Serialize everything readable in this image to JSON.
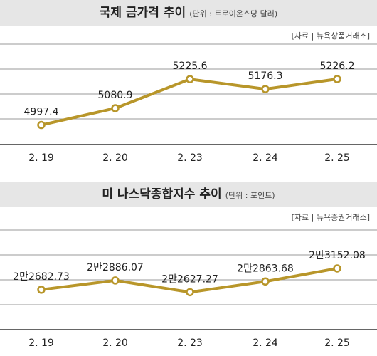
{
  "chart_data": [
    {
      "type": "line",
      "title": "국제 금가격 추이",
      "unit_note": "(단위 : 트로이온스당 달러)",
      "source": "[자료 | 뉴욕상품거래소]",
      "categories": [
        "2. 19",
        "2. 20",
        "2. 23",
        "2. 24",
        "2. 25"
      ],
      "values": [
        4997.4,
        5080.9,
        5225.6,
        5176.3,
        5226.2
      ],
      "value_labels": [
        "4997.4",
        "5080.9",
        "5225.6",
        "5176.3",
        "5226.2"
      ],
      "ylim": [
        4900,
        5400
      ],
      "grid": true,
      "legend": "none",
      "colors": {
        "line": "#b8962a",
        "marker_fill": "#ffffff",
        "grid": "#9a9a9a",
        "axis": "#333333"
      }
    },
    {
      "type": "line",
      "title": "미 나스닥종합지수 추이",
      "unit_note": "(단위 : 포인트)",
      "source": "[자료 | 뉴욕증권거래소]",
      "categories": [
        "2. 19",
        "2. 20",
        "2. 23",
        "2. 24",
        "2. 25"
      ],
      "values": [
        22682.73,
        22886.07,
        22627.27,
        22863.68,
        23152.08
      ],
      "value_labels": [
        "2만2682.73",
        "2만2886.07",
        "2만2627.27",
        "2만2863.68",
        "2만3152.08"
      ],
      "ylim": [
        21800,
        24000
      ],
      "grid": true,
      "legend": "none",
      "colors": {
        "line": "#b8962a",
        "marker_fill": "#ffffff",
        "grid": "#9a9a9a",
        "axis": "#333333"
      }
    }
  ]
}
